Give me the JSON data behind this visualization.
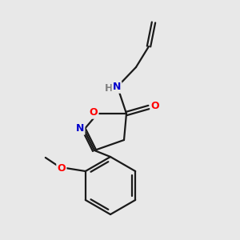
{
  "background_color": "#e8e8e8",
  "bond_color": "#1a1a1a",
  "atom_colors": {
    "O": "#ff0000",
    "N": "#0000cc",
    "H": "#808080",
    "C": "#1a1a1a"
  },
  "figsize": [
    3.0,
    3.0
  ],
  "dpi": 100
}
